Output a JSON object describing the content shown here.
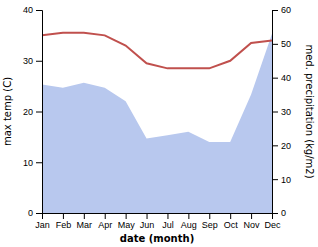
{
  "chart_data": {
    "type": "line",
    "xlabel": "date (month)",
    "ylabel": "max temp (C)",
    "y2label": "med. precipitation (kg/m2)",
    "categories": [
      "Jan",
      "Feb",
      "Mar",
      "Apr",
      "May",
      "Jun",
      "Jul",
      "Aug",
      "Sep",
      "Oct",
      "Nov",
      "Dec"
    ],
    "series": [
      {
        "type": "area",
        "axis": "y2",
        "color": "#b8c8ee",
        "values": [
          38,
          37,
          38.5,
          37,
          33,
          22,
          23,
          24,
          21,
          21,
          35,
          53
        ]
      },
      {
        "type": "line",
        "color": "#c0504d",
        "values": [
          35,
          35.5,
          35.5,
          35,
          33,
          29.5,
          28.5,
          28.5,
          28.5,
          30,
          33.5,
          34
        ]
      }
    ],
    "ylim": [
      0,
      40
    ],
    "yticks": [
      0,
      10,
      20,
      30,
      40
    ],
    "y2lim": [
      0,
      60
    ],
    "y2ticks": [
      0,
      10,
      20,
      30,
      40,
      50,
      60
    ],
    "grid": false
  }
}
